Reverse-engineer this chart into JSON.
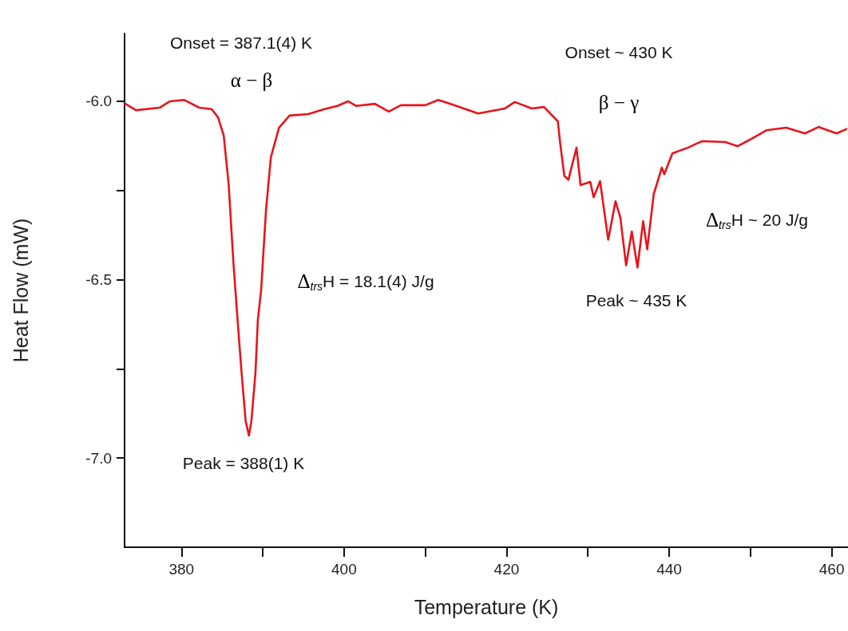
{
  "chart_data": {
    "type": "line",
    "xlabel": "Temperature (K)",
    "ylabel": "Heat Flow (mW)",
    "xlim": [
      373,
      462
    ],
    "xticks": [
      380,
      {
        "value": 390,
        "label": null
      },
      400,
      {
        "value": 410,
        "label": null
      },
      420,
      {
        "value": 430,
        "label": null
      },
      440,
      {
        "value": 450,
        "label": null
      },
      460
    ],
    "ylim": [
      -7.25,
      -5.81
    ],
    "yticks": [
      {
        "value": -7.0,
        "label": "-7.0"
      },
      {
        "value": -6.75,
        "label": null
      },
      {
        "value": -6.5,
        "label": "-6.5"
      },
      {
        "value": -6.25,
        "label": null
      },
      {
        "value": -6.0,
        "label": "-6.0"
      }
    ],
    "grid": false,
    "marker": "none",
    "line_style": "solid",
    "series": [
      {
        "color": "#e8141b",
        "x": [
          373.1,
          374.4,
          377.3,
          378.6,
          380.3,
          382.2,
          383.7,
          384.5,
          385.2,
          385.8,
          386.4,
          386.9,
          387.4,
          387.9,
          388.3,
          388.6,
          389.1,
          389.4,
          389.8,
          390.4,
          391.0,
          392.0,
          393.3,
          395.6,
          397.6,
          399.2,
          400.5,
          401.5,
          403.8,
          405.5,
          407.0,
          410.0,
          411.6,
          413.6,
          416.5,
          419.8,
          421.0,
          423.1,
          424.6,
          426.3,
          426.6,
          427.1,
          427.6,
          428.6,
          429.1,
          430.3,
          430.7,
          431.5,
          432.5,
          433.4,
          434.0,
          434.7,
          435.4,
          436.1,
          436.8,
          437.3,
          438.1,
          439.1,
          439.4,
          440.4,
          442.3,
          444.0,
          446.9,
          448.4,
          449.9,
          452.0,
          454.4,
          456.7,
          458.4,
          460.6,
          461.8
        ],
        "values": [
          -6.007,
          -6.025,
          -6.018,
          -6.0,
          -5.996,
          -6.018,
          -6.022,
          -6.045,
          -6.096,
          -6.231,
          -6.455,
          -6.612,
          -6.762,
          -6.897,
          -6.937,
          -6.897,
          -6.762,
          -6.612,
          -6.529,
          -6.305,
          -6.157,
          -6.074,
          -6.04,
          -6.036,
          -6.022,
          -6.013,
          -6.0,
          -6.013,
          -6.007,
          -6.029,
          -6.011,
          -6.011,
          -5.996,
          -6.011,
          -6.034,
          -6.02,
          -6.002,
          -6.02,
          -6.016,
          -6.056,
          -6.119,
          -6.209,
          -6.22,
          -6.13,
          -6.235,
          -6.226,
          -6.269,
          -6.224,
          -6.388,
          -6.28,
          -6.327,
          -6.46,
          -6.365,
          -6.466,
          -6.336,
          -6.415,
          -6.26,
          -6.186,
          -6.204,
          -6.146,
          -6.13,
          -6.112,
          -6.114,
          -6.126,
          -6.108,
          -6.081,
          -6.074,
          -6.09,
          -6.072,
          -6.09,
          -6.078
        ]
      }
    ],
    "annotations": [
      "Onset = 387.1(4) K",
      "α − β",
      "Δ$_{trs}$H = 18.1(4) J/g",
      "Peak = 388(1) K",
      "Onset ~ 430 K",
      "β − γ",
      "Δ$_{trs}$H ~ 20 J/g",
      "Peak ~ 435 K"
    ]
  }
}
